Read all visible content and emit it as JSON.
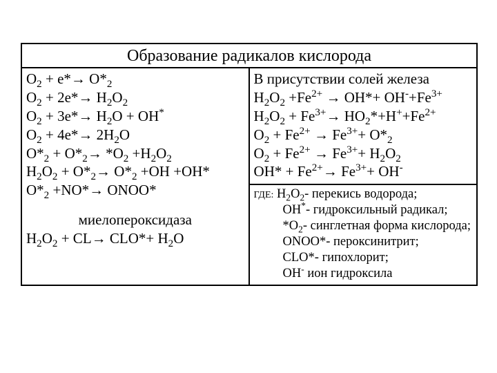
{
  "title": "Образование радикалов кислорода",
  "left": {
    "eq1": {
      "pre": "O",
      "s1": "2",
      "mid": " + e*→ O*",
      "s2": "2"
    },
    "eq2": {
      "pre": "O",
      "s1": "2",
      "mid": " + 2e*→ H",
      "s2": "2",
      "mid2": "O",
      "s3": "2"
    },
    "eq3": {
      "pre": "O",
      "s1": "2",
      "mid": " + 3e*→ H",
      "s2": "2",
      "mid2": "O + OH",
      "sup": "*"
    },
    "eq4": {
      "pre": "O",
      "s1": "2",
      "mid": " + 4e*→ 2H",
      "s2": "2",
      "mid2": "O"
    },
    "eq5": {
      "pre": "O*",
      "s1": "2",
      "mid": " + O*",
      "s2": "2",
      "mid2": "→ *O",
      "s3": "2",
      "mid3": " +H",
      "s4": "2",
      "mid4": "O",
      "s5": "2"
    },
    "eq6": {
      "pre": "H",
      "s1": "2",
      "mid": "O",
      "s2": "2",
      "mid2": " + O*",
      "s3": "2",
      "mid3": "→ O*",
      "s4": "2",
      "mid4": " +OH +OH*"
    },
    "eq7": {
      "pre": "O*",
      "s1": "2",
      "mid": " +NO*→ ONOO*"
    },
    "mpo_label": "миелопероксидаза",
    "mpo_eq": {
      "pre": "H",
      "s1": "2",
      "mid": "O",
      "s2": "2",
      "mid2": " + CL→ CLO*+ H",
      "s3": "2",
      "mid3": "O"
    }
  },
  "right_top": {
    "heading": "В присутствии солей железа",
    "eq1": {
      "pre": "H",
      "s1": "2",
      "mid": "O",
      "s2": "2",
      "mid2": " +Fe",
      "sup1": "2+",
      "mid3": " → OH*+ OH",
      "sup2": "-",
      "mid4": "+Fe",
      "sup3": "3+"
    },
    "eq2": {
      "pre": "H",
      "s1": "2",
      "mid": "O",
      "s2": "2",
      "mid2": " + Fe",
      "sup1": "3+",
      "mid3": "→ HO",
      "s3": "2",
      "mid4": "*+H",
      "sup2": "+",
      "mid5": "+Fe",
      "sup3": "2+"
    },
    "eq3": {
      "pre": "O",
      "s1": "2",
      "mid": " + Fe",
      "sup1": "2+",
      "mid2": " → Fe",
      "sup2": "3+",
      "mid3": "+ O*",
      "s2": "2"
    },
    "eq4": {
      "pre": "O",
      "s1": "2",
      "mid": " + Fe",
      "sup1": "2+",
      "mid2": " → Fe",
      "sup2": "3+",
      "mid3": "+ H",
      "s2": "2",
      "mid4": "O",
      "s3": "2"
    },
    "eq5": {
      "pre": "OH* + Fe",
      "sup1": "2+",
      "mid": "→ Fe",
      "sup2": "3+",
      "mid2": "+ OH",
      "sup3": "-"
    }
  },
  "legend": {
    "label": "ГДЕ:",
    "l1": {
      "pre": " H",
      "s1": "2",
      "mid": "O",
      "s2": "2",
      "tail": "- перекись водорода;"
    },
    "l2": {
      "pre": "OH",
      "sup": "*",
      "tail": "- гидроксильный радикал;"
    },
    "l3": {
      "pre": "*O",
      "s1": "2",
      "tail": "- синглетная форма кислорода;"
    },
    "l4": "ONOO*- пероксинитрит;",
    "l5": "CLO*- гипохлорит;",
    "l6": {
      "pre": "OH",
      "sup": "-",
      "tail": " ион гидроксила"
    }
  }
}
